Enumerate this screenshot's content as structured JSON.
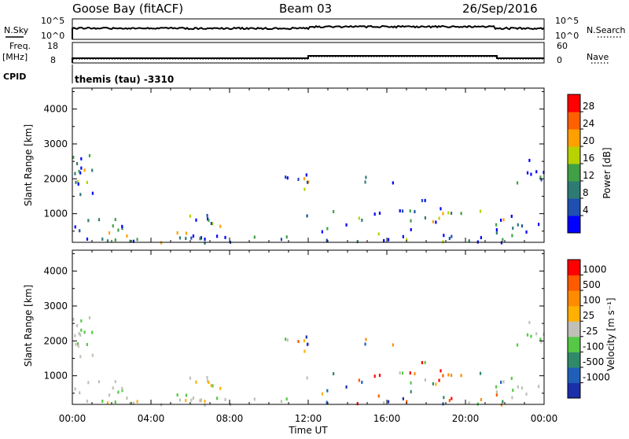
{
  "header": {
    "station": "Goose Bay (fitACF)",
    "beam": "Beam 03",
    "date": "26/Sep/2016"
  },
  "top_panels": {
    "nsky_label": "N.Sky",
    "nsky_tick_hi": "10^5",
    "nsky_tick_lo": "10^0",
    "nsearch_label": "N.Search",
    "nsearch_tick_hi": "10^5",
    "nsearch_tick_lo": "10^0",
    "freq_label_1": "Freq.",
    "freq_label_2": "[MHz]",
    "freq_tick_hi": "18",
    "freq_tick_lo": "8",
    "nave_label": "Nave",
    "nave_tick_hi": "60",
    "nave_tick_lo": "0",
    "cpid_label": "CPID",
    "cpid_value": "themis (tau) -3310"
  },
  "chart_data": [
    {
      "type": "heatmap",
      "name": "power",
      "title": "",
      "xlabel": "",
      "ylabel": "Slant Range [km]",
      "ylim": [
        180,
        4600
      ],
      "yticks": [
        "1000",
        "2000",
        "3000",
        "4000"
      ],
      "colorbar_label": "Power [dB]",
      "colorbar_ticks": [
        "4",
        "8",
        "12",
        "16",
        "20",
        "24",
        "28"
      ],
      "colorbar_colors": [
        "#0000ff",
        "#1f4fb0",
        "#2e7b73",
        "#3fa046",
        "#b8d200",
        "#ffa000",
        "#ff6000",
        "#ff0000"
      ]
    },
    {
      "type": "heatmap",
      "name": "velocity",
      "title": "",
      "xlabel": "Time UT",
      "ylabel": "Slant Range [km]",
      "ylim": [
        180,
        4600
      ],
      "yticks": [
        "1000",
        "2000",
        "3000",
        "4000"
      ],
      "xticks": [
        "00:00",
        "04:00",
        "08:00",
        "12:00",
        "16:00",
        "20:00",
        "00:00"
      ],
      "colorbar_label": "Velocity [m s⁻¹]",
      "colorbar_ticks": [
        "1000",
        "500",
        "100",
        "25",
        "-25",
        "-100",
        "-500",
        "-1000"
      ],
      "colorbar_colors": [
        "#1a2fa8",
        "#1f5fb8",
        "#2f8a6a",
        "#55c845",
        "#c0c0b8",
        "#ffb000",
        "#ff8c00",
        "#ff5a00",
        "#ff0000"
      ]
    }
  ]
}
